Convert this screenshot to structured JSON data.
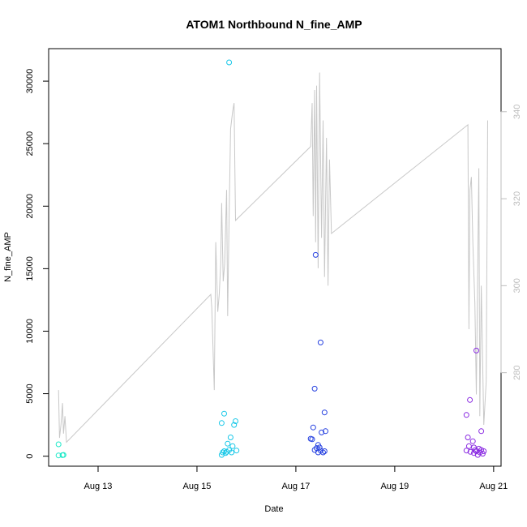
{
  "chart_data": {
    "type": "scatter",
    "title": "ATOM1 Northbound N_fine_AMP",
    "xlabel": "Date",
    "ylabel": "N_fine_AMP",
    "x_ticks": [
      "Aug 13",
      "Aug 15",
      "Aug 17",
      "Aug 19",
      "Aug 21"
    ],
    "y_ticks": [
      "0",
      "5000",
      "10000",
      "15000",
      "20000",
      "25000",
      "30000"
    ],
    "y2_ticks": [
      "280",
      "300",
      "320",
      "340"
    ],
    "x_range_days": [
      12.0,
      21.15
    ],
    "ylim": [
      -800,
      32600
    ],
    "y2lim": [
      258.5,
      354.5
    ],
    "line_color": "#c8c8c8",
    "right_axis_color": "#bdbdbd",
    "series": [
      {
        "color": "#1de9c8",
        "points": [
          [
            12.2,
            950
          ],
          [
            12.2,
            60
          ],
          [
            12.28,
            80
          ],
          [
            12.3,
            100
          ]
        ]
      },
      {
        "color": "#19c8e8",
        "points": [
          [
            15.5,
            2650
          ],
          [
            15.55,
            3400
          ],
          [
            15.5,
            100
          ],
          [
            15.52,
            300
          ],
          [
            15.55,
            400
          ],
          [
            15.6,
            350
          ],
          [
            15.62,
            1000
          ],
          [
            15.65,
            500
          ],
          [
            15.68,
            1500
          ],
          [
            15.7,
            300
          ],
          [
            15.72,
            800
          ],
          [
            15.75,
            2500
          ],
          [
            15.78,
            2800
          ],
          [
            15.8,
            450
          ],
          [
            15.58,
            250
          ],
          [
            15.65,
            31500
          ]
        ]
      },
      {
        "color": "#2540e0",
        "points": [
          [
            17.4,
            16100
          ],
          [
            17.5,
            9100
          ],
          [
            17.38,
            5400
          ],
          [
            17.58,
            3500
          ],
          [
            17.35,
            2300
          ],
          [
            17.52,
            1900
          ],
          [
            17.6,
            2000
          ],
          [
            17.3,
            1400
          ],
          [
            17.33,
            1350
          ],
          [
            17.42,
            650
          ],
          [
            17.45,
            900
          ],
          [
            17.48,
            700
          ],
          [
            17.5,
            450
          ],
          [
            17.55,
            300
          ],
          [
            17.58,
            400
          ],
          [
            17.38,
            500
          ],
          [
            17.45,
            300
          ]
        ]
      },
      {
        "color": "#8a2be2",
        "points": [
          [
            20.65,
            8450
          ],
          [
            20.52,
            4500
          ],
          [
            20.45,
            3300
          ],
          [
            20.75,
            2000
          ],
          [
            20.48,
            1500
          ],
          [
            20.58,
            1200
          ],
          [
            20.5,
            800
          ],
          [
            20.53,
            350
          ],
          [
            20.6,
            700
          ],
          [
            20.63,
            500
          ],
          [
            20.65,
            400
          ],
          [
            20.68,
            100
          ],
          [
            20.7,
            600
          ],
          [
            20.72,
            300
          ],
          [
            20.75,
            500
          ],
          [
            20.78,
            200
          ],
          [
            20.8,
            400
          ],
          [
            20.45,
            450
          ],
          [
            20.6,
            250
          ]
        ]
      }
    ],
    "line_series": [
      [
        12.2,
        276
      ],
      [
        12.22,
        265
      ],
      [
        12.25,
        268
      ],
      [
        12.28,
        273
      ],
      [
        12.3,
        266
      ],
      [
        12.33,
        270
      ],
      [
        12.36,
        264
      ],
      [
        15.28,
        298
      ],
      [
        15.3,
        295
      ],
      [
        15.35,
        276
      ],
      [
        15.38,
        310
      ],
      [
        15.42,
        294
      ],
      [
        15.45,
        298
      ],
      [
        15.48,
        305
      ],
      [
        15.5,
        319
      ],
      [
        15.53,
        301
      ],
      [
        15.56,
        305
      ],
      [
        15.6,
        322
      ],
      [
        15.62,
        293
      ],
      [
        15.65,
        316
      ],
      [
        15.68,
        336
      ],
      [
        15.72,
        340
      ],
      [
        15.75,
        342
      ],
      [
        15.78,
        315
      ],
      [
        17.3,
        332
      ],
      [
        17.33,
        342
      ],
      [
        17.35,
        316
      ],
      [
        17.38,
        345
      ],
      [
        17.4,
        310
      ],
      [
        17.42,
        346
      ],
      [
        17.45,
        304
      ],
      [
        17.48,
        349
      ],
      [
        17.52,
        311
      ],
      [
        17.55,
        338
      ],
      [
        17.58,
        302
      ],
      [
        17.62,
        334
      ],
      [
        17.65,
        300
      ],
      [
        17.68,
        329
      ],
      [
        17.72,
        312
      ],
      [
        20.48,
        337
      ],
      [
        20.5,
        290
      ],
      [
        20.52,
        322
      ],
      [
        20.55,
        325
      ],
      [
        20.58,
        310
      ],
      [
        20.62,
        296
      ],
      [
        20.65,
        275
      ],
      [
        20.7,
        327
      ],
      [
        20.72,
        270
      ],
      [
        20.75,
        300
      ],
      [
        20.8,
        268
      ],
      [
        20.85,
        278
      ],
      [
        20.88,
        338
      ]
    ]
  }
}
